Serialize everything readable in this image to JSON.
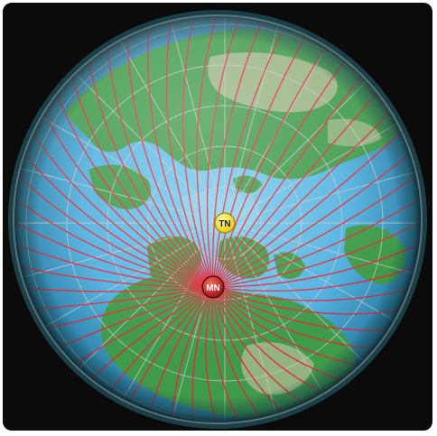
{
  "map": {
    "projection": "polar-azimuthal",
    "colors": {
      "background": "#0b0b0b",
      "ocean": "#5ab8e6",
      "land": "#3f9a4a",
      "highland": "#a9b98f",
      "graticule": "#c9c9c9",
      "field_lines": "#e6283a",
      "rim": "#2a5b63"
    },
    "markers": {
      "true_north": {
        "label": "TN",
        "color": "#f4e21a"
      },
      "magnetic_north": {
        "label": "MN",
        "color": "#c41e24"
      }
    }
  }
}
